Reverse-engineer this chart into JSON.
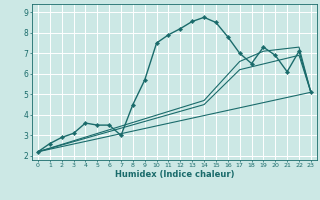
{
  "xlabel": "Humidex (Indice chaleur)",
  "bg_color": "#cce8e5",
  "grid_color": "#ffffff",
  "line_color": "#1a6b6b",
  "xlim": [
    -0.5,
    23.5
  ],
  "ylim": [
    1.8,
    9.4
  ],
  "xticks": [
    0,
    1,
    2,
    3,
    4,
    5,
    6,
    7,
    8,
    9,
    10,
    11,
    12,
    13,
    14,
    15,
    16,
    17,
    18,
    19,
    20,
    21,
    22,
    23
  ],
  "yticks": [
    2,
    3,
    4,
    5,
    6,
    7,
    8,
    9
  ],
  "lines": [
    {
      "x": [
        0,
        1,
        2,
        3,
        4,
        5,
        6,
        7,
        8,
        9,
        10,
        11,
        12,
        13,
        14,
        15,
        16,
        17,
        18,
        19,
        20,
        21,
        22,
        23
      ],
      "y": [
        2.2,
        2.6,
        2.9,
        3.1,
        3.6,
        3.5,
        3.5,
        3.0,
        4.5,
        5.7,
        7.5,
        7.9,
        8.2,
        8.55,
        8.75,
        8.5,
        7.8,
        7.0,
        6.5,
        7.3,
        6.9,
        6.1,
        7.1,
        5.1
      ],
      "marker": "D",
      "markersize": 2.2,
      "linewidth": 1.0,
      "linestyle": "-"
    },
    {
      "x": [
        0,
        23
      ],
      "y": [
        2.2,
        5.1
      ],
      "marker": null,
      "linewidth": 0.8,
      "linestyle": "-"
    },
    {
      "x": [
        0,
        14,
        17,
        22,
        23
      ],
      "y": [
        2.2,
        4.5,
        6.2,
        6.9,
        5.1
      ],
      "marker": null,
      "linewidth": 0.8,
      "linestyle": "-"
    },
    {
      "x": [
        0,
        14,
        17,
        19,
        22,
        23
      ],
      "y": [
        2.2,
        4.7,
        6.6,
        7.1,
        7.3,
        5.1
      ],
      "marker": null,
      "linewidth": 0.8,
      "linestyle": "-"
    }
  ]
}
